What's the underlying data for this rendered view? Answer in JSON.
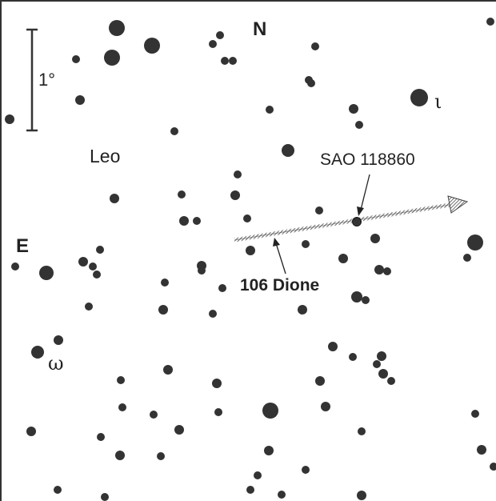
{
  "labels": {
    "north": "N",
    "east": "E",
    "scale": "1°",
    "constellation": "Leo",
    "target_star": "SAO 118860",
    "asteroid": "106 Dione",
    "star_iota": "ι",
    "star_omega": "ω"
  },
  "colors": {
    "stars": "#333333",
    "border": "#333333",
    "track": "#555555"
  }
}
